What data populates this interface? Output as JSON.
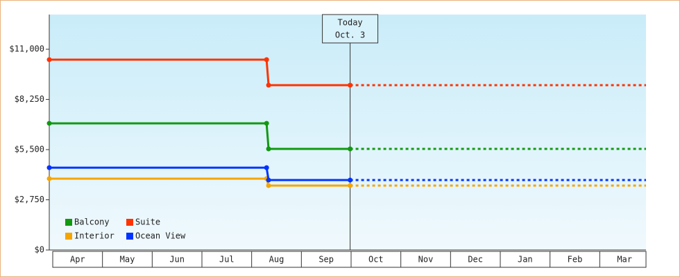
{
  "chart_data": {
    "type": "line",
    "x_categories": [
      "Apr",
      "May",
      "Jun",
      "Jul",
      "Aug",
      "Sep",
      "Oct",
      "Nov",
      "Dec",
      "Jan",
      "Feb",
      "Mar"
    ],
    "xlim": [
      0,
      12
    ],
    "ylim": [
      0,
      12900
    ],
    "yticks": [
      {
        "value": 0,
        "label": "$0"
      },
      {
        "value": 2750,
        "label": "$2,750"
      },
      {
        "value": 5500,
        "label": "$5,500"
      },
      {
        "value": 8250,
        "label": "$8,250"
      },
      {
        "value": 11000,
        "label": "$11,000"
      }
    ],
    "annotation": {
      "lines": [
        "Today",
        "Oct. 3"
      ],
      "x": 6.05
    },
    "series": [
      {
        "name": "Balcony",
        "color": "#119911",
        "x": [
          0,
          4.37,
          4.41,
          6.05
        ],
        "values": [
          6940,
          6940,
          5540,
          5540
        ]
      },
      {
        "name": "Suite",
        "color": "#ff3300",
        "x": [
          0,
          4.37,
          4.41,
          6.05
        ],
        "values": [
          10430,
          10430,
          9030,
          9030
        ]
      },
      {
        "name": "Interior",
        "color": "#f5a500",
        "x": [
          0,
          4.37,
          4.41,
          6.05
        ],
        "values": [
          3910,
          3910,
          3530,
          3530
        ]
      },
      {
        "name": "Ocean View",
        "color": "#0033ff",
        "x": [
          0,
          4.37,
          4.41,
          6.05
        ],
        "values": [
          4510,
          4510,
          3830,
          3830
        ]
      }
    ]
  }
}
